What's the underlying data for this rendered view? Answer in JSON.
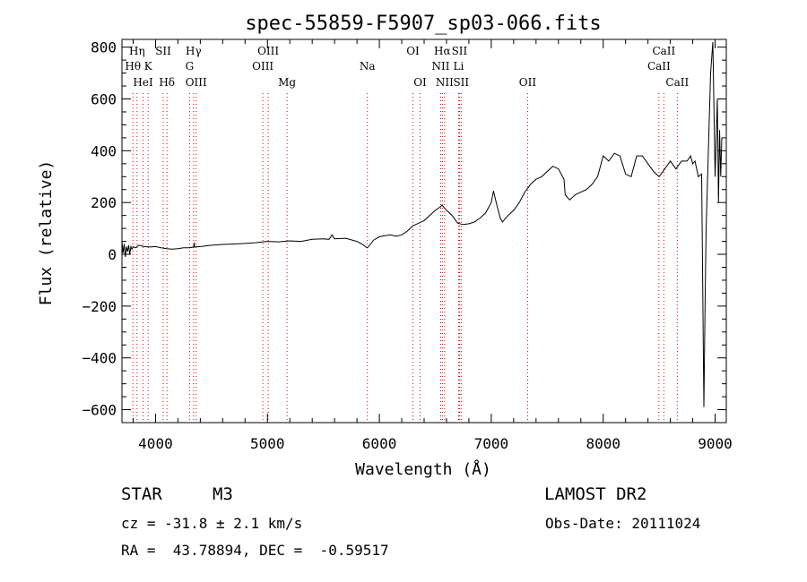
{
  "chart_data": {
    "type": "line",
    "title": "spec-55859-F5907_sp03-066.fits",
    "xlabel": "Wavelength (Å)",
    "ylabel": "Flux (relative)",
    "xlim": [
      3700,
      9100
    ],
    "ylim": [
      -650,
      830
    ],
    "x_ticks": [
      4000,
      5000,
      6000,
      7000,
      8000,
      9000
    ],
    "y_ticks": [
      800,
      600,
      400,
      200,
      0,
      -200,
      -400,
      -600
    ],
    "grid": false,
    "series": [
      {
        "x": [
          3700,
          3710,
          3720,
          3730,
          3740,
          3750,
          3760,
          3770,
          3780,
          3790,
          3800,
          3820,
          3850,
          3900,
          3950,
          4000,
          4050,
          4100,
          4150,
          4200,
          4250,
          4300,
          4340,
          4345,
          4350,
          4400,
          4500,
          4600,
          4700,
          4800,
          4900,
          5000,
          5100,
          5200,
          5300,
          5400,
          5500,
          5550,
          5577,
          5600,
          5700,
          5800,
          5850,
          5890,
          5900,
          5950,
          6000,
          6050,
          6100,
          6150,
          6200,
          6250,
          6300,
          6350,
          6400,
          6450,
          6500,
          6550,
          6560,
          6600,
          6650,
          6700,
          6750,
          6800,
          6850,
          6900,
          6950,
          7000,
          7020,
          7050,
          7080,
          7100,
          7150,
          7200,
          7250,
          7300,
          7350,
          7400,
          7450,
          7500,
          7550,
          7600,
          7650,
          7660,
          7700,
          7750,
          7800,
          7850,
          7900,
          7950,
          8000,
          8050,
          8100,
          8150,
          8200,
          8250,
          8300,
          8350,
          8400,
          8450,
          8500,
          8550,
          8600,
          8650,
          8700,
          8750,
          8780,
          8800,
          8820,
          8850,
          8880,
          8900,
          8910,
          8920,
          8940,
          8960,
          8980,
          9000,
          9010,
          9020,
          9030,
          9040,
          9050,
          9060
        ],
        "y": [
          50,
          5,
          40,
          -10,
          30,
          10,
          35,
          0,
          30,
          20,
          30,
          25,
          35,
          30,
          28,
          30,
          25,
          22,
          20,
          22,
          25,
          25,
          28,
          45,
          28,
          30,
          35,
          38,
          40,
          42,
          45,
          50,
          48,
          52,
          50,
          58,
          60,
          58,
          75,
          60,
          62,
          50,
          38,
          25,
          28,
          55,
          68,
          72,
          75,
          70,
          75,
          90,
          110,
          120,
          130,
          150,
          170,
          185,
          190,
          170,
          150,
          120,
          115,
          118,
          125,
          140,
          160,
          200,
          245,
          190,
          140,
          125,
          150,
          170,
          200,
          240,
          270,
          290,
          300,
          320,
          340,
          330,
          290,
          230,
          210,
          230,
          240,
          250,
          270,
          300,
          380,
          360,
          390,
          380,
          310,
          300,
          380,
          380,
          350,
          320,
          300,
          330,
          360,
          330,
          360,
          360,
          380,
          350,
          360,
          300,
          310,
          -590,
          -200,
          100,
          400,
          700,
          820,
          300,
          450,
          600,
          200,
          480,
          300,
          450
        ]
      }
    ],
    "line_marks": [
      {
        "name": "Hη",
        "row": 0,
        "x": 3835
      },
      {
        "name": "Hθ",
        "row": 1,
        "x": 3798
      },
      {
        "name": "HeI",
        "row": 2,
        "x": 3889
      },
      {
        "name": "K",
        "row": 1,
        "x": 3934
      },
      {
        "name": "SII",
        "row": 0,
        "x": 4069
      },
      {
        "name": "Hδ",
        "row": 2,
        "x": 4102
      },
      {
        "name": "Hγ",
        "row": 0,
        "x": 4340
      },
      {
        "name": "G",
        "row": 1,
        "x": 4304
      },
      {
        "name": "OIII",
        "row": 2,
        "x": 4363
      },
      {
        "name": "OIII",
        "row": 0,
        "x": 5007
      },
      {
        "name": "OIII",
        "row": 1,
        "x": 4959
      },
      {
        "name": "Mg",
        "row": 2,
        "x": 5175
      },
      {
        "name": "Na",
        "row": 1,
        "x": 5893
      },
      {
        "name": "OI",
        "row": 0,
        "x": 6300
      },
      {
        "name": "OI",
        "row": 2,
        "x": 6364
      },
      {
        "name": "Hα",
        "row": 0,
        "x": 6563
      },
      {
        "name": "NII",
        "row": 1,
        "x": 6548
      },
      {
        "name": "NII",
        "row": 2,
        "x": 6583
      },
      {
        "name": "SII",
        "row": 0,
        "x": 6716
      },
      {
        "name": "Li",
        "row": 1,
        "x": 6708
      },
      {
        "name": "SII",
        "row": 2,
        "x": 6731
      },
      {
        "name": "OII",
        "row": 2,
        "x": 7325
      },
      {
        "name": "CaII",
        "row": 0,
        "x": 8542
      },
      {
        "name": "CaII",
        "row": 1,
        "x": 8498
      },
      {
        "name": "CaII",
        "row": 2,
        "x": 8662
      }
    ]
  },
  "footer": {
    "object_type": "STAR",
    "subclass": "M3",
    "survey": "LAMOST DR2",
    "redshift": "cz = -31.8 ± 2.1 km/s",
    "obs_date": "Obs-Date: 20111024",
    "coords": "RA =  43.78894, DEC =  -0.59517"
  }
}
